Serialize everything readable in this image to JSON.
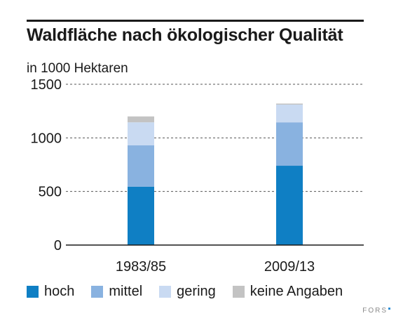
{
  "chart_data": {
    "type": "bar",
    "stacked": true,
    "title": "Waldfläche nach ökologischer Qualität",
    "unit_label": "in 1000 Hektaren",
    "categories": [
      "1983/85",
      "2009/13"
    ],
    "series": [
      {
        "name": "hoch",
        "color": "#0f7fc4",
        "values": [
          545,
          740
        ]
      },
      {
        "name": "mittel",
        "color": "#89b2e0",
        "values": [
          385,
          405
        ]
      },
      {
        "name": "gering",
        "color": "#c9daf2",
        "values": [
          215,
          165
        ]
      },
      {
        "name": "keine Angaben",
        "color": "#c3c3c3",
        "values": [
          55,
          10
        ]
      }
    ],
    "y_ticks": [
      0,
      500,
      1000,
      1500
    ],
    "ylim": [
      0,
      1500
    ],
    "grid": true,
    "legend_position": "bottom"
  },
  "source_label": "FORS"
}
